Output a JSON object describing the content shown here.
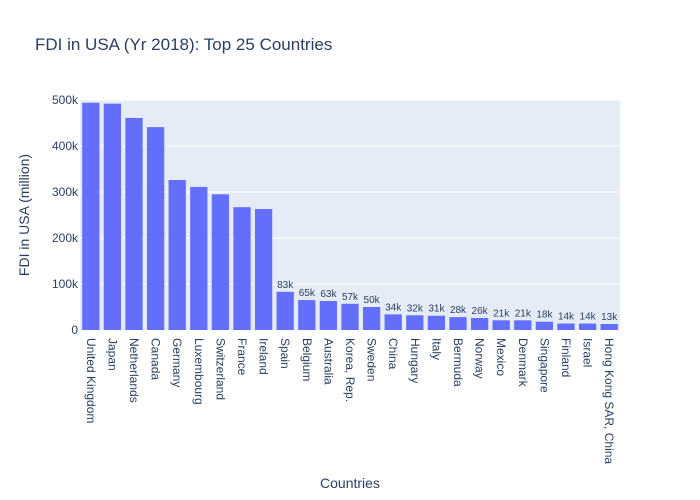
{
  "chart_data": {
    "type": "bar",
    "title": "FDI in USA (Yr 2018): Top 25 Countries",
    "xlabel": "Countries",
    "ylabel": "FDI in USA (million)",
    "ylim": [
      0,
      500000
    ],
    "yticks": [
      0,
      100000,
      200000,
      300000,
      400000,
      500000
    ],
    "ytick_labels": [
      "0",
      "100k",
      "200k",
      "300k",
      "400k",
      "500k"
    ],
    "grid": true,
    "colors": {
      "bar": "#636efa",
      "plot_bg": "#e5ecf6",
      "grid": "#ffffff",
      "text": "#2a3f5f",
      "background": "#ffffff"
    },
    "categories": [
      "United Kingdom",
      "Japan",
      "Netherlands",
      "Canada",
      "Germany",
      "Luxembourg",
      "Switzerland",
      "France",
      "Ireland",
      "Spain",
      "Belgium",
      "Australia",
      "Korea, Rep.",
      "Sweden",
      "China",
      "Hungary",
      "Italy",
      "Bermuda",
      "Norway",
      "Mexico",
      "Denmark",
      "Singapore",
      "Finland",
      "Israel",
      "Hong Kong SAR, China"
    ],
    "values": [
      494000,
      492000,
      461000,
      441000,
      326000,
      311000,
      295000,
      267000,
      263000,
      83000,
      65000,
      63000,
      57000,
      50000,
      34000,
      32000,
      31000,
      28000,
      26000,
      21000,
      21000,
      18000,
      14000,
      14000,
      13000
    ],
    "data_labels": [
      "",
      "",
      "",
      "",
      "",
      "",
      "",
      "",
      "",
      "83k",
      "65k",
      "63k",
      "57k",
      "50k",
      "34k",
      "32k",
      "31k",
      "28k",
      "26k",
      "21k",
      "21k",
      "18k",
      "14k",
      "14k",
      "13k"
    ]
  }
}
